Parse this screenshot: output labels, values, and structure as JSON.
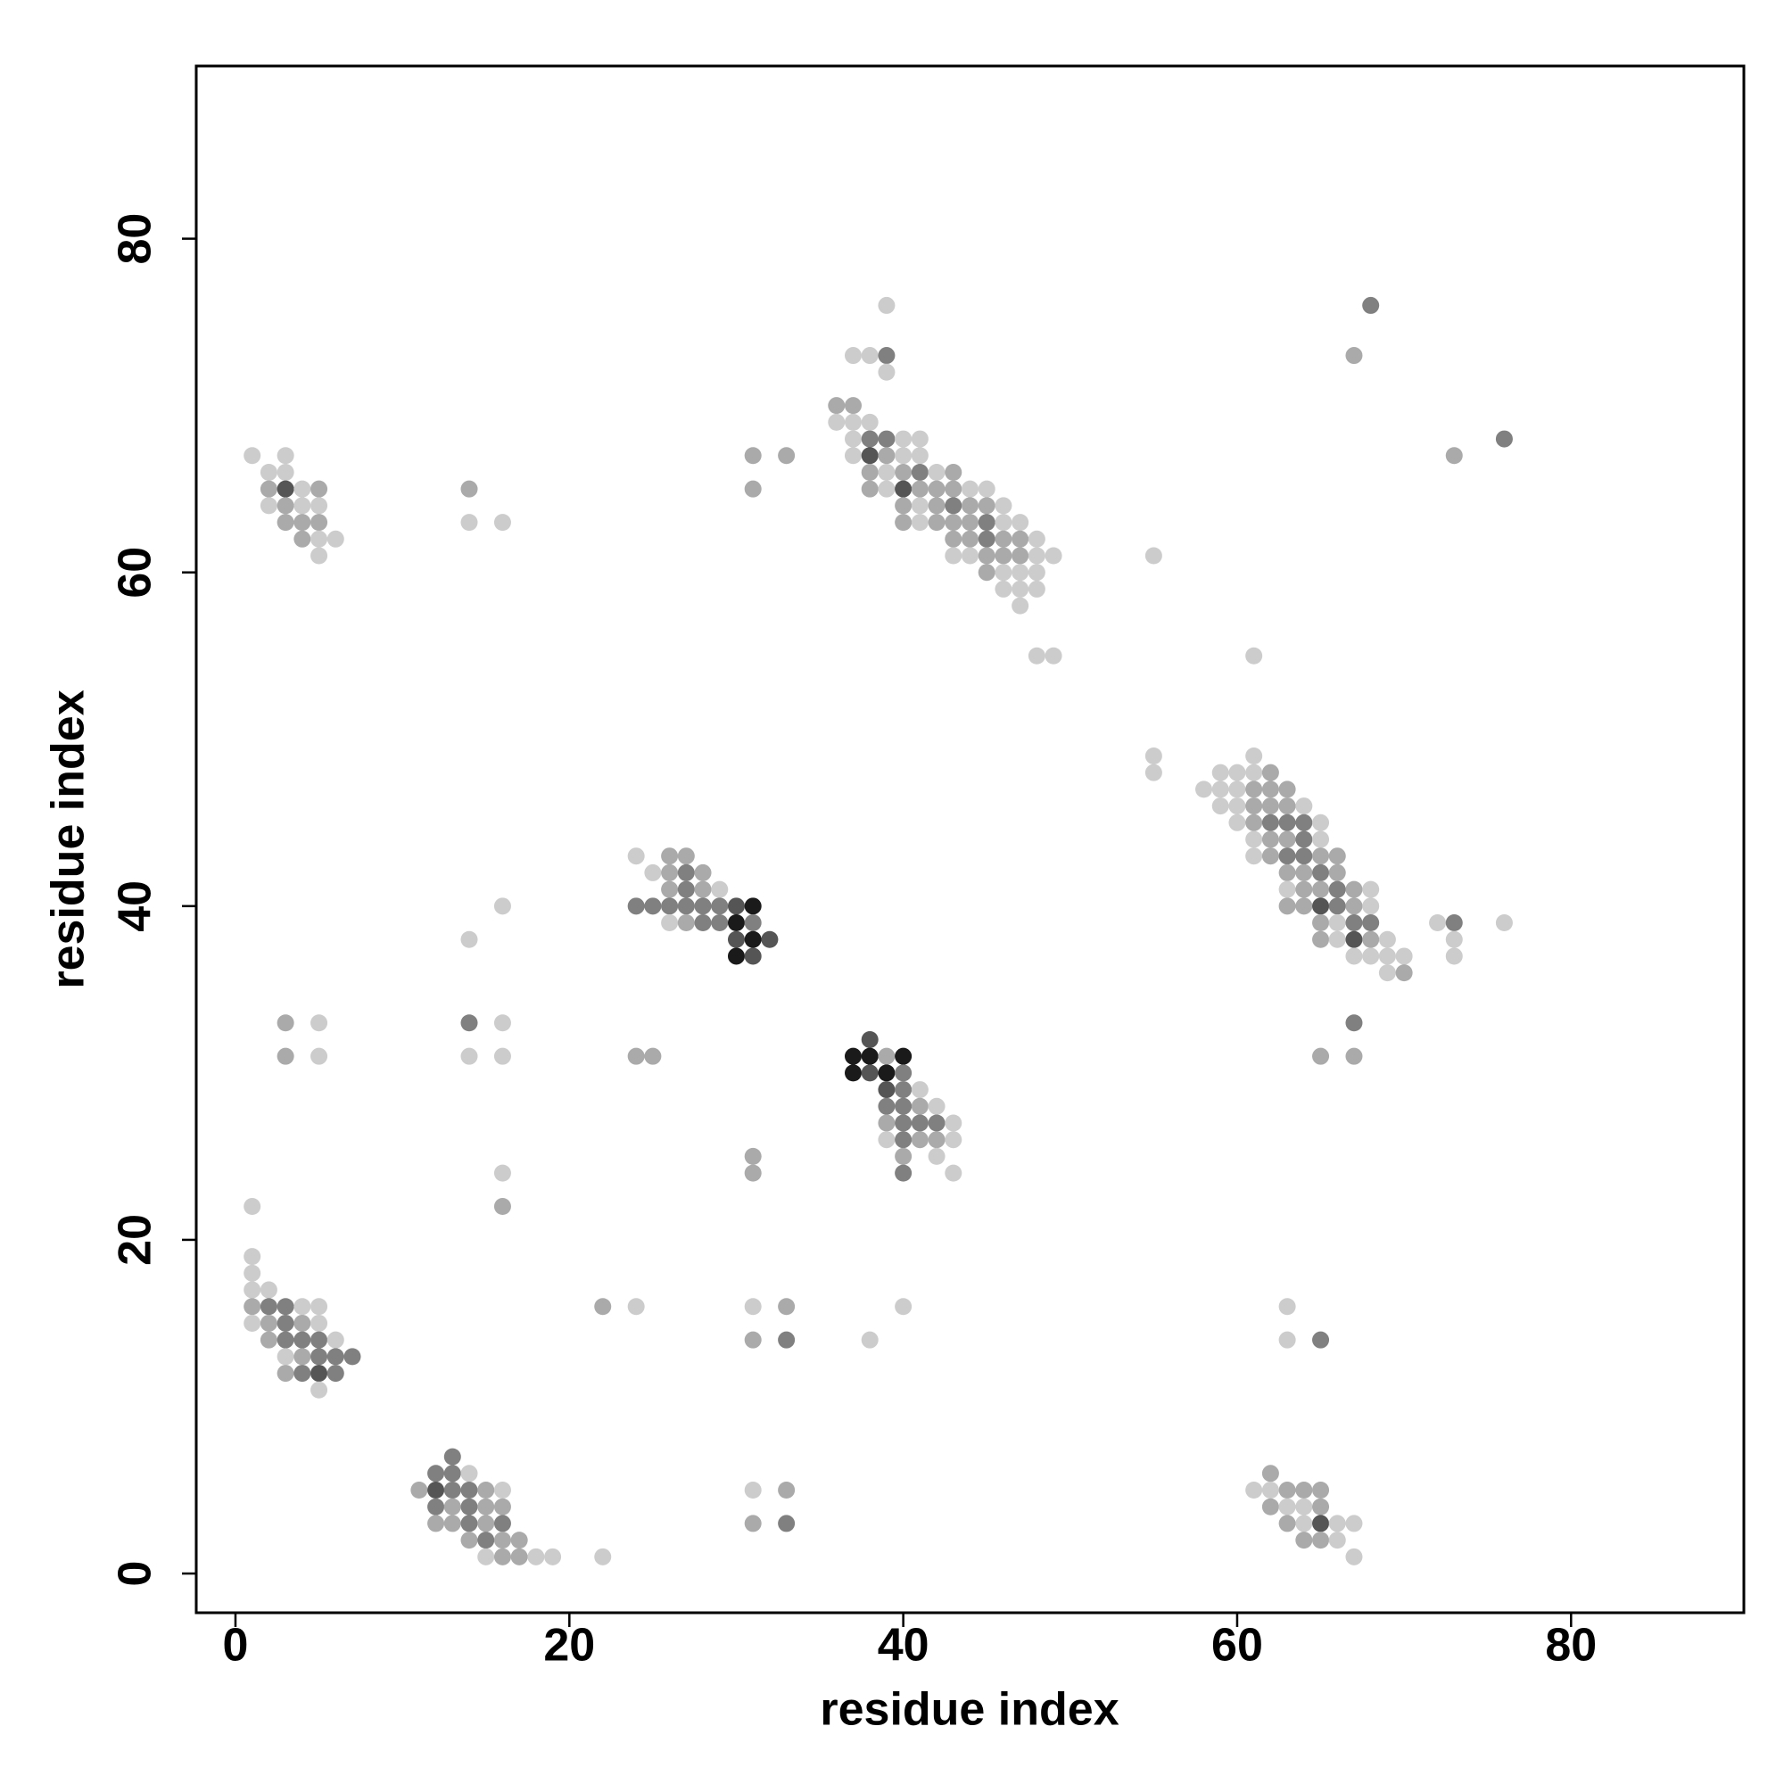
{
  "chart_data": {
    "type": "scatter",
    "x_label": "residue index",
    "y_label": "residue index",
    "xlim": [
      -2.35,
      90.35
    ],
    "ylim": [
      -2.35,
      90.35
    ],
    "xticks": [
      0,
      20,
      40,
      60,
      80
    ],
    "yticks": [
      0,
      20,
      40,
      60,
      80
    ],
    "grid": false,
    "x": [
      1,
      3,
      2,
      3,
      2,
      3,
      4,
      5,
      2,
      3,
      4,
      5,
      3,
      4,
      5,
      4,
      5,
      6,
      5,
      14,
      14,
      16,
      31,
      33,
      31,
      39,
      37,
      38,
      39,
      39,
      36,
      37,
      36,
      37,
      38,
      37,
      38,
      39,
      40,
      41,
      37,
      38,
      39,
      40,
      41,
      38,
      39,
      40,
      41,
      42,
      43,
      38,
      39,
      40,
      41,
      42,
      43,
      44,
      45,
      40,
      41,
      42,
      43,
      44,
      45,
      46,
      40,
      41,
      42,
      43,
      44,
      45,
      46,
      47,
      43,
      44,
      45,
      46,
      47,
      48,
      43,
      44,
      45,
      46,
      47,
      48,
      49,
      45,
      46,
      47,
      48,
      46,
      47,
      48,
      47,
      48,
      49,
      55,
      68,
      67,
      73,
      76,
      61,
      55,
      55,
      61,
      59,
      60,
      61,
      62,
      58,
      59,
      60,
      61,
      62,
      63,
      59,
      60,
      61,
      62,
      63,
      64,
      60,
      61,
      62,
      63,
      64,
      65,
      61,
      62,
      63,
      64,
      65,
      61,
      62,
      63,
      64,
      65,
      66,
      63,
      64,
      65,
      66,
      63,
      64,
      65,
      66,
      67,
      68,
      63,
      64,
      65,
      66,
      67,
      68,
      65,
      66,
      67,
      68,
      65,
      66,
      67,
      68,
      69,
      67,
      68,
      69,
      70,
      69,
      70,
      72,
      73,
      73,
      73,
      76,
      24,
      26,
      27,
      25,
      26,
      27,
      28,
      26,
      27,
      28,
      29,
      24,
      25,
      26,
      27,
      28,
      29,
      30,
      31,
      26,
      27,
      28,
      29,
      30,
      31,
      30,
      31,
      32,
      30,
      31,
      14,
      16,
      3,
      5,
      3,
      5,
      14,
      16,
      14,
      16,
      24,
      25,
      65,
      67,
      67,
      38,
      37,
      38,
      39,
      40,
      37,
      38,
      39,
      40,
      39,
      40,
      41,
      39,
      40,
      41,
      42,
      39,
      40,
      41,
      42,
      43,
      39,
      40,
      41,
      42,
      43,
      40,
      42,
      40,
      43,
      31,
      31,
      16,
      16,
      1,
      1,
      1,
      1,
      2,
      1,
      2,
      3,
      4,
      5,
      1,
      2,
      3,
      4,
      5,
      2,
      3,
      4,
      5,
      6,
      3,
      4,
      5,
      6,
      7,
      3,
      4,
      5,
      6,
      5,
      22,
      24,
      31,
      33,
      31,
      33,
      38,
      40,
      63,
      63,
      65,
      13,
      12,
      13,
      14,
      11,
      12,
      13,
      14,
      15,
      16,
      12,
      13,
      14,
      15,
      16,
      12,
      13,
      14,
      15,
      16,
      14,
      15,
      16,
      17,
      15,
      16,
      17,
      18,
      19,
      22,
      31,
      33,
      31,
      33,
      62,
      61,
      62,
      63,
      64,
      65,
      62,
      63,
      64,
      65,
      63,
      64,
      65,
      66,
      67,
      64,
      65,
      66,
      67
    ],
    "values": [
      67,
      67,
      66,
      66,
      65,
      65,
      65,
      65,
      64,
      64,
      64,
      64,
      63,
      63,
      63,
      62,
      62,
      62,
      61,
      65,
      63,
      63,
      67,
      67,
      65,
      76,
      73,
      73,
      73,
      72,
      70,
      70,
      69,
      69,
      69,
      68,
      68,
      68,
      68,
      68,
      67,
      67,
      67,
      67,
      67,
      66,
      66,
      66,
      66,
      66,
      66,
      65,
      65,
      65,
      65,
      65,
      65,
      65,
      65,
      64,
      64,
      64,
      64,
      64,
      64,
      64,
      63,
      63,
      63,
      63,
      63,
      63,
      63,
      63,
      62,
      62,
      62,
      62,
      62,
      62,
      61,
      61,
      61,
      61,
      61,
      61,
      61,
      60,
      60,
      60,
      60,
      59,
      59,
      59,
      58,
      55,
      55,
      61,
      76,
      73,
      67,
      68,
      55,
      49,
      48,
      49,
      48,
      48,
      48,
      48,
      47,
      47,
      47,
      47,
      47,
      47,
      46,
      46,
      46,
      46,
      46,
      46,
      45,
      45,
      45,
      45,
      45,
      45,
      44,
      44,
      44,
      44,
      44,
      43,
      43,
      43,
      43,
      43,
      43,
      42,
      42,
      42,
      42,
      41,
      41,
      41,
      41,
      41,
      41,
      40,
      40,
      40,
      40,
      40,
      40,
      39,
      39,
      39,
      39,
      38,
      38,
      38,
      38,
      38,
      37,
      37,
      37,
      37,
      36,
      36,
      39,
      39,
      38,
      37,
      39,
      43,
      43,
      43,
      42,
      42,
      42,
      42,
      41,
      41,
      41,
      41,
      40,
      40,
      40,
      40,
      40,
      40,
      40,
      40,
      39,
      39,
      39,
      39,
      39,
      39,
      38,
      38,
      38,
      37,
      37,
      38,
      40,
      33,
      33,
      31,
      31,
      33,
      33,
      31,
      31,
      31,
      31,
      31,
      33,
      31,
      32,
      31,
      31,
      31,
      31,
      30,
      30,
      30,
      30,
      29,
      29,
      29,
      28,
      28,
      28,
      28,
      27,
      27,
      27,
      27,
      27,
      26,
      26,
      26,
      26,
      26,
      25,
      25,
      24,
      24,
      25,
      24,
      24,
      22,
      22,
      19,
      18,
      17,
      17,
      16,
      16,
      16,
      16,
      16,
      15,
      15,
      15,
      15,
      15,
      14,
      14,
      14,
      14,
      14,
      13,
      13,
      13,
      13,
      13,
      12,
      12,
      12,
      12,
      11,
      16,
      16,
      16,
      16,
      14,
      14,
      14,
      16,
      16,
      14,
      14,
      7,
      6,
      6,
      6,
      5,
      5,
      5,
      5,
      5,
      5,
      4,
      4,
      4,
      4,
      4,
      3,
      3,
      3,
      3,
      3,
      2,
      2,
      2,
      2,
      1,
      1,
      1,
      1,
      1,
      1,
      5,
      5,
      3,
      3,
      6,
      5,
      5,
      5,
      5,
      5,
      4,
      4,
      4,
      4,
      3,
      3,
      3,
      3,
      3,
      2,
      2,
      2,
      1
    ],
    "colors": [
      "#cccccc",
      "#cccccc",
      "#cccccc",
      "#cccccc",
      "#aaaaaa",
      "#555555",
      "#cccccc",
      "#aaaaaa",
      "#cccccc",
      "#aaaaaa",
      "#cccccc",
      "#cccccc",
      "#aaaaaa",
      "#aaaaaa",
      "#aaaaaa",
      "#aaaaaa",
      "#cccccc",
      "#cccccc",
      "#cccccc",
      "#aaaaaa",
      "#cccccc",
      "#cccccc",
      "#aaaaaa",
      "#aaaaaa",
      "#aaaaaa",
      "#cccccc",
      "#cccccc",
      "#cccccc",
      "#808080",
      "#cccccc",
      "#aaaaaa",
      "#aaaaaa",
      "#cccccc",
      "#cccccc",
      "#cccccc",
      "#cccccc",
      "#808080",
      "#808080",
      "#cccccc",
      "#cccccc",
      "#cccccc",
      "#555555",
      "#aaaaaa",
      "#cccccc",
      "#cccccc",
      "#aaaaaa",
      "#cccccc",
      "#aaaaaa",
      "#808080",
      "#cccccc",
      "#aaaaaa",
      "#aaaaaa",
      "#cccccc",
      "#555555",
      "#aaaaaa",
      "#aaaaaa",
      "#aaaaaa",
      "#cccccc",
      "#cccccc",
      "#aaaaaa",
      "#cccccc",
      "#aaaaaa",
      "#808080",
      "#aaaaaa",
      "#aaaaaa",
      "#cccccc",
      "#aaaaaa",
      "#cccccc",
      "#aaaaaa",
      "#aaaaaa",
      "#aaaaaa",
      "#808080",
      "#cccccc",
      "#cccccc",
      "#aaaaaa",
      "#aaaaaa",
      "#808080",
      "#aaaaaa",
      "#aaaaaa",
      "#cccccc",
      "#cccccc",
      "#cccccc",
      "#aaaaaa",
      "#aaaaaa",
      "#aaaaaa",
      "#cccccc",
      "#cccccc",
      "#aaaaaa",
      "#cccccc",
      "#cccccc",
      "#cccccc",
      "#cccccc",
      "#cccccc",
      "#cccccc",
      "#cccccc",
      "#cccccc",
      "#cccccc",
      "#cccccc",
      "#808080",
      "#aaaaaa",
      "#aaaaaa",
      "#808080",
      "#cccccc",
      "#cccccc",
      "#cccccc",
      "#cccccc",
      "#cccccc",
      "#cccccc",
      "#cccccc",
      "#aaaaaa",
      "#cccccc",
      "#cccccc",
      "#cccccc",
      "#aaaaaa",
      "#aaaaaa",
      "#aaaaaa",
      "#cccccc",
      "#cccccc",
      "#aaaaaa",
      "#aaaaaa",
      "#aaaaaa",
      "#cccccc",
      "#cccccc",
      "#aaaaaa",
      "#808080",
      "#808080",
      "#808080",
      "#cccccc",
      "#cccccc",
      "#aaaaaa",
      "#aaaaaa",
      "#808080",
      "#cccccc",
      "#cccccc",
      "#aaaaaa",
      "#808080",
      "#808080",
      "#aaaaaa",
      "#aaaaaa",
      "#aaaaaa",
      "#aaaaaa",
      "#808080",
      "#aaaaaa",
      "#cccccc",
      "#aaaaaa",
      "#aaaaaa",
      "#808080",
      "#aaaaaa",
      "#cccccc",
      "#aaaaaa",
      "#aaaaaa",
      "#555555",
      "#808080",
      "#aaaaaa",
      "#cccccc",
      "#aaaaaa",
      "#cccccc",
      "#808080",
      "#808080",
      "#aaaaaa",
      "#cccccc",
      "#555555",
      "#aaaaaa",
      "#cccccc",
      "#cccccc",
      "#cccccc",
      "#cccccc",
      "#cccccc",
      "#cccccc",
      "#aaaaaa",
      "#cccccc",
      "#808080",
      "#cccccc",
      "#cccccc",
      "#cccccc",
      "#cccccc",
      "#aaaaaa",
      "#aaaaaa",
      "#cccccc",
      "#aaaaaa",
      "#808080",
      "#aaaaaa",
      "#aaaaaa",
      "#808080",
      "#aaaaaa",
      "#cccccc",
      "#808080",
      "#808080",
      "#808080",
      "#808080",
      "#808080",
      "#808080",
      "#555555",
      "#1a1a1a",
      "#cccccc",
      "#aaaaaa",
      "#808080",
      "#808080",
      "#1a1a1a",
      "#808080",
      "#555555",
      "#1a1a1a",
      "#555555",
      "#1a1a1a",
      "#555555",
      "#cccccc",
      "#cccccc",
      "#aaaaaa",
      "#cccccc",
      "#aaaaaa",
      "#cccccc",
      "#808080",
      "#cccccc",
      "#cccccc",
      "#cccccc",
      "#aaaaaa",
      "#aaaaaa",
      "#aaaaaa",
      "#808080",
      "#aaaaaa",
      "#555555",
      "#1a1a1a",
      "#1a1a1a",
      "#aaaaaa",
      "#1a1a1a",
      "#1a1a1a",
      "#555555",
      "#1a1a1a",
      "#808080",
      "#555555",
      "#808080",
      "#cccccc",
      "#808080",
      "#808080",
      "#aaaaaa",
      "#cccccc",
      "#aaaaaa",
      "#808080",
      "#808080",
      "#808080",
      "#cccccc",
      "#cccccc",
      "#808080",
      "#aaaaaa",
      "#aaaaaa",
      "#cccccc",
      "#aaaaaa",
      "#cccccc",
      "#808080",
      "#cccccc",
      "#aaaaaa",
      "#aaaaaa",
      "#cccccc",
      "#aaaaaa",
      "#cccccc",
      "#cccccc",
      "#cccccc",
      "#cccccc",
      "#cccccc",
      "#aaaaaa",
      "#808080",
      "#808080",
      "#cccccc",
      "#cccccc",
      "#cccccc",
      "#aaaaaa",
      "#808080",
      "#aaaaaa",
      "#cccccc",
      "#aaaaaa",
      "#808080",
      "#808080",
      "#808080",
      "#cccccc",
      "#cccccc",
      "#aaaaaa",
      "#808080",
      "#808080",
      "#808080",
      "#aaaaaa",
      "#808080",
      "#555555",
      "#808080",
      "#cccccc",
      "#aaaaaa",
      "#cccccc",
      "#cccccc",
      "#aaaaaa",
      "#aaaaaa",
      "#808080",
      "#cccccc",
      "#cccccc",
      "#cccccc",
      "#cccccc",
      "#808080",
      "#808080",
      "#808080",
      "#808080",
      "#cccccc",
      "#aaaaaa",
      "#555555",
      "#808080",
      "#808080",
      "#aaaaaa",
      "#cccccc",
      "#808080",
      "#aaaaaa",
      "#808080",
      "#aaaaaa",
      "#aaaaaa",
      "#aaaaaa",
      "#aaaaaa",
      "#808080",
      "#aaaaaa",
      "#808080",
      "#aaaaaa",
      "#808080",
      "#aaaaaa",
      "#aaaaaa",
      "#cccccc",
      "#aaaaaa",
      "#aaaaaa",
      "#cccccc",
      "#cccccc",
      "#cccccc",
      "#cccccc",
      "#aaaaaa",
      "#aaaaaa",
      "#808080",
      "#aaaaaa",
      "#cccccc",
      "#cccccc",
      "#aaaaaa",
      "#aaaaaa",
      "#aaaaaa",
      "#aaaaaa",
      "#cccccc",
      "#cccccc",
      "#aaaaaa",
      "#aaaaaa",
      "#cccccc",
      "#555555",
      "#cccccc",
      "#cccccc",
      "#aaaaaa",
      "#aaaaaa",
      "#cccccc",
      "#cccccc"
    ]
  }
}
